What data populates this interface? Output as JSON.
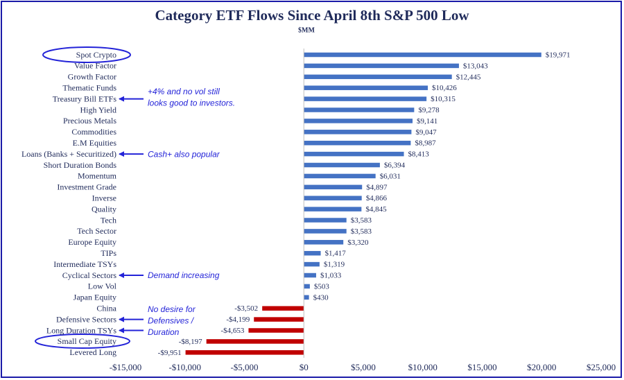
{
  "chart_data": {
    "type": "bar",
    "orientation": "horizontal",
    "title": "Category ETF Flows Since April 8th S&P 500 Low",
    "subtitle": "$MM",
    "categories": [
      "Spot Crypto",
      "Value Factor",
      "Growth Factor",
      "Thematic Funds",
      "Treasury Bill ETFs",
      "High Yield",
      "Precious Metals",
      "Commodities",
      "E.M Equities",
      "Loans (Banks + Securitized)",
      "Short Duration Bonds",
      "Momentum",
      "Investment Grade",
      "Inverse",
      "Quality",
      "Tech",
      "Tech Sector",
      "Europe Equity",
      "TIPs",
      "Intermediate TSYs",
      "Cyclical Sectors",
      "Low Vol",
      "Japan Equity",
      "China",
      "Defensive Sectors",
      "Long Duration TSYs",
      "Small Cap Equity",
      "Levered Long"
    ],
    "values": [
      19971,
      13043,
      12445,
      10426,
      10315,
      9278,
      9141,
      9047,
      8987,
      8413,
      6394,
      6031,
      4897,
      4866,
      4845,
      3583,
      3583,
      3320,
      1417,
      1319,
      1033,
      503,
      430,
      -3502,
      -4199,
      -4653,
      -8197,
      -9951
    ],
    "value_labels": [
      "$19,971",
      "$13,043",
      "$12,445",
      "$10,426",
      "$10,315",
      "$9,278",
      "$9,141",
      "$9,047",
      "$8,987",
      "$8,413",
      "$6,394",
      "$6,031",
      "$4,897",
      "$4,866",
      "$4,845",
      "$3,583",
      "$3,583",
      "$3,320",
      "$1,417",
      "$1,319",
      "$1,033",
      "$503",
      "$430",
      "-$3,502",
      "-$4,199",
      "-$4,653",
      "-$8,197",
      "-$9,951"
    ],
    "color": "#4472c4",
    "negative_color": "#c00000",
    "xlim": [
      -15000,
      25000
    ],
    "xticks": [
      {
        "value": -15000,
        "label": "-$15,000"
      },
      {
        "value": -10000,
        "label": "-$10,000"
      },
      {
        "value": -5000,
        "label": "-$5,000"
      },
      {
        "value": 0,
        "label": "$0"
      },
      {
        "value": 5000,
        "label": "$5,000"
      },
      {
        "value": 10000,
        "label": "$10,000"
      },
      {
        "value": 15000,
        "label": "$15,000"
      },
      {
        "value": 20000,
        "label": "$20,000"
      },
      {
        "value": 25000,
        "label": "$25,000"
      }
    ],
    "grid": false,
    "annotations": [
      {
        "lines": [
          "+4% and no vol still",
          "looks good to investors."
        ]
      },
      {
        "lines": [
          "Cash+ also popular"
        ]
      },
      {
        "lines": [
          "Demand increasing"
        ]
      },
      {
        "lines": [
          "No desire for",
          "Defensives /",
          "Duration"
        ]
      }
    ]
  }
}
